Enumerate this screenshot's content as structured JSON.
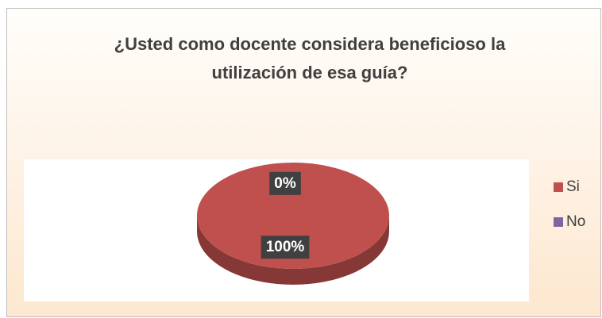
{
  "chart_data": {
    "type": "pie",
    "title": "¿Usted como docente considera beneficioso la utilización de esa guía?",
    "categories": [
      "Si",
      "No"
    ],
    "values": [
      100,
      0
    ],
    "value_labels": [
      "100%",
      "0%"
    ],
    "colors": [
      "#c0504d",
      "#8064a2"
    ],
    "legend": "right",
    "three_d": true
  }
}
